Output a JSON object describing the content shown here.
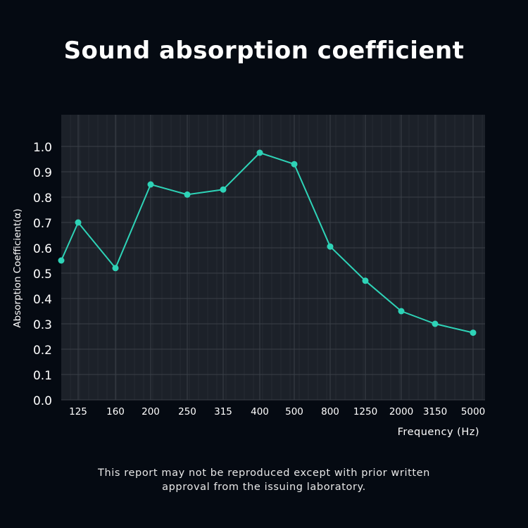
{
  "chart_data": {
    "type": "line",
    "title": "Sound absorption coefficient",
    "xlabel": "Frequency (Hz)",
    "ylabel": "Absorption Coefficient(α)",
    "x": [
      "",
      "125",
      "160",
      "200",
      "250",
      "315",
      "400",
      "500",
      "800",
      "1250",
      "2000",
      "3150",
      "5000"
    ],
    "series": [
      {
        "values": [
          0.55,
          0.7,
          0.52,
          0.85,
          0.81,
          0.83,
          0.975,
          0.93,
          0.605,
          0.47,
          0.35,
          0.3,
          0.265
        ]
      }
    ],
    "yticks": [
      "0.0",
      "0.1",
      "0.2",
      "0.3",
      "0.4",
      "0.5",
      "0.6",
      "0.7",
      "0.8",
      "0.9",
      "1.0"
    ],
    "ylim": [
      0,
      1.0
    ],
    "grid": true,
    "colors": {
      "line": "#2ed3b7",
      "background": "#050a12",
      "plot_area": "#1c2129",
      "grid": "#3a3f47"
    }
  },
  "footer": {
    "line1": "This report may not be reproduced except with prior written",
    "line2": "approval from the issuing laboratory."
  }
}
